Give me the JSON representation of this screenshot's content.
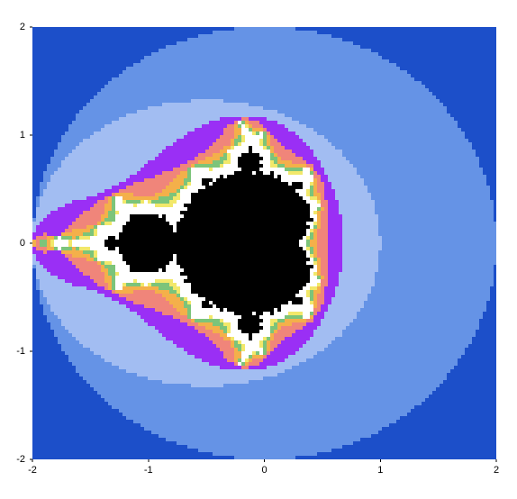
{
  "chart_data": {
    "type": "mandelbrot",
    "xlim": [
      -2,
      2
    ],
    "ylim": [
      -2,
      2
    ],
    "xticks": [
      -2,
      -1,
      0,
      1,
      2
    ],
    "yticks": [
      -2,
      -1,
      0,
      1,
      2
    ],
    "colors": [
      "#1c4fc9",
      "#6593e6",
      "#a2bdf2",
      "#9a2ff5",
      "#f0857a",
      "#f4b04a",
      "#7cc47a",
      "#f2e86a"
    ],
    "outer_color": "#ffffff",
    "inside_color": "#000000"
  }
}
